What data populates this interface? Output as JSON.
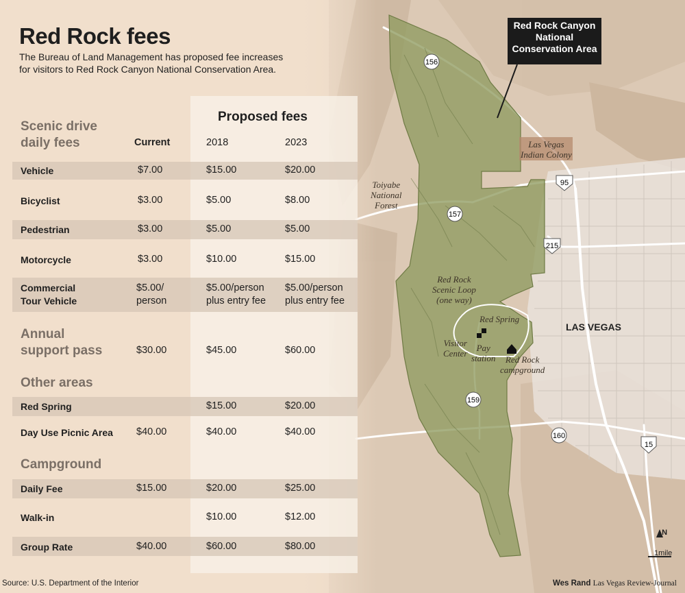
{
  "title": "Red Rock fees",
  "subtitle": "The Bureau of Land Management has proposed fee increases for visitors to Red Rock Canyon National Conservation Area.",
  "table": {
    "proposed_label": "Proposed fees",
    "columns": [
      "Current",
      "2018",
      "2023"
    ],
    "sections": [
      {
        "heading_lines": [
          "Scenic drive",
          "daily fees"
        ],
        "rows": [
          {
            "label_lines": [
              "Vehicle"
            ],
            "current": [
              "$7.00"
            ],
            "y2018": [
              "$15.00"
            ],
            "y2023": [
              "$20.00"
            ]
          },
          {
            "label_lines": [
              "Bicyclist"
            ],
            "current": [
              "$3.00"
            ],
            "y2018": [
              "$5.00"
            ],
            "y2023": [
              "$8.00"
            ]
          },
          {
            "label_lines": [
              "Pedestrian"
            ],
            "current": [
              "$3.00"
            ],
            "y2018": [
              "$5.00"
            ],
            "y2023": [
              "$5.00"
            ]
          },
          {
            "label_lines": [
              "Motorcycle"
            ],
            "current": [
              "$3.00"
            ],
            "y2018": [
              "$10.00"
            ],
            "y2023": [
              "$15.00"
            ]
          },
          {
            "label_lines": [
              "Commercial",
              "Tour Vehicle"
            ],
            "current": [
              "$5.00/",
              "person"
            ],
            "y2018": [
              "$5.00/person",
              "plus entry fee"
            ],
            "y2023": [
              "$5.00/person",
              "plus entry fee"
            ]
          }
        ]
      },
      {
        "heading_lines": [
          "Annual",
          "support pass"
        ],
        "inline_values": {
          "current": "$30.00",
          "y2018": "$45.00",
          "y2023": "$60.00"
        }
      },
      {
        "heading_lines": [
          "Other areas"
        ],
        "rows": [
          {
            "label_lines": [
              "Red Spring"
            ],
            "current": [
              ""
            ],
            "y2018": [
              "$15.00"
            ],
            "y2023": [
              "$20.00"
            ]
          },
          {
            "label_lines": [
              "Day Use Picnic Area"
            ],
            "current": [
              "$40.00"
            ],
            "y2018": [
              "$40.00"
            ],
            "y2023": [
              "$40.00"
            ]
          }
        ]
      },
      {
        "heading_lines": [
          "Campground"
        ],
        "rows": [
          {
            "label_lines": [
              "Daily Fee"
            ],
            "current": [
              "$15.00"
            ],
            "y2018": [
              "$20.00"
            ],
            "y2023": [
              "$25.00"
            ]
          },
          {
            "label_lines": [
              "Walk-in"
            ],
            "current": [
              ""
            ],
            "y2018": [
              "$10.00"
            ],
            "y2023": [
              "$12.00"
            ]
          },
          {
            "label_lines": [
              "Group Rate"
            ],
            "current": [
              "$40.00"
            ],
            "y2018": [
              "$60.00"
            ],
            "y2023": [
              "$80.00"
            ]
          }
        ]
      }
    ]
  },
  "map": {
    "callout_lines": [
      "Red Rock Canyon",
      "National",
      "Conservation Area"
    ],
    "city_label": "LAS VEGAS",
    "labels": {
      "indian_colony": [
        "Las Vegas",
        "Indian Colony"
      ],
      "toiyabe": [
        "Toiyabe",
        "National",
        "Forest"
      ],
      "scenic_loop": [
        "Red Rock",
        "Scenic Loop",
        "(one way)"
      ],
      "red_spring": [
        "Red Spring"
      ],
      "visitor_center": [
        "Visitor",
        "Center"
      ],
      "pay_station": [
        "Pay",
        "station"
      ],
      "campground": [
        "Red Rock",
        "campground"
      ]
    },
    "route_shields": [
      "156",
      "157",
      "159",
      "95",
      "215",
      "160",
      "15"
    ],
    "scale": {
      "north": "N",
      "distance": "1mile"
    },
    "colors": {
      "conservation_area": "#8f9b60",
      "indian_colony": "#b58a6e",
      "roads": "#ffffff",
      "terrain": "#d8c7b4"
    }
  },
  "source": "Source: U.S. Department of the Interior",
  "credit": {
    "author": "Wes Rand",
    "outlet": "Las Vegas Review-Journal"
  }
}
